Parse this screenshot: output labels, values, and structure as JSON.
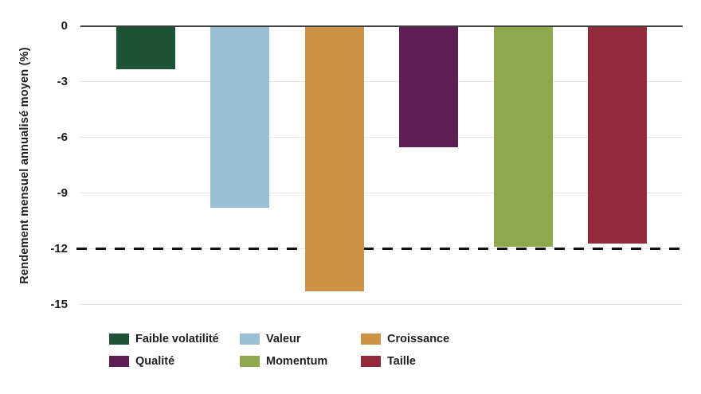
{
  "chart_data": {
    "type": "bar",
    "title": "",
    "xlabel": "",
    "ylabel": "Rendement mensuel annualisé moyen (%)",
    "categories": [
      "Faible volatilité",
      "Valeur",
      "Croissance",
      "Qualité",
      "Momentum",
      "Taille"
    ],
    "values": [
      -2.3,
      -9.8,
      -14.3,
      -6.5,
      -11.9,
      -11.7
    ],
    "colors": [
      "#1d5438",
      "#9ac0d6",
      "#cc9346",
      "#5f1f56",
      "#8fa84b",
      "#932a3c"
    ],
    "yticks": [
      0,
      -3,
      -6,
      -9,
      -12,
      -15
    ],
    "ylim": [
      -15.8,
      0
    ],
    "grid": true,
    "legend_position": "bottom",
    "legend_rows": 2,
    "legend_columns": 3,
    "reference_line": {
      "value": -12,
      "style": "dashed",
      "color": "#141414"
    },
    "axis_colors": {
      "zero_line": "#404040",
      "gridline": "#e7e7e7",
      "text": "#1f1f1f"
    }
  }
}
